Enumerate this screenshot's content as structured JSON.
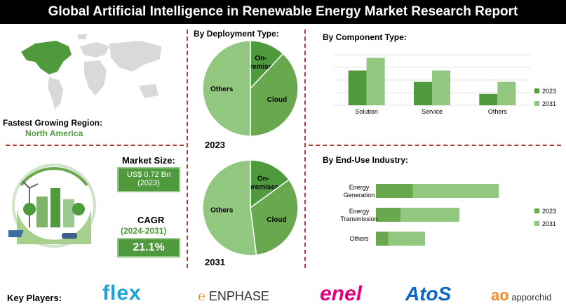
{
  "header": {
    "title": "Global Artificial Intelligence in Renewable Energy Market Research Report"
  },
  "region": {
    "label": "Fastest Growing Region:",
    "value": "North America"
  },
  "market_size": {
    "label": "Market Size:",
    "value_line1": "US$ 0.72 Bn",
    "value_line2": "(2023)"
  },
  "cagr": {
    "label": "CAGR",
    "period": "(2024-2031)",
    "value": "21.1%"
  },
  "deployment": {
    "title": "By Deployment Type:"
  },
  "component": {
    "title": "By Component Type:"
  },
  "enduse": {
    "title": "By End-Use Industry:"
  },
  "key_players": {
    "label": "Key Players:",
    "logos": [
      "flex",
      "ENPHASE",
      "enel",
      "AtoS",
      "apporchid"
    ]
  },
  "colors": {
    "dark_green": "#4e9a3d",
    "light_green": "#92c77f",
    "mid_green": "#6aa84f",
    "divider": "#b23b3b"
  },
  "chart_data": [
    {
      "type": "pie",
      "title": "2023",
      "labels": [
        "On-premises",
        "Cloud",
        "Others"
      ],
      "values": [
        12,
        38,
        50
      ],
      "colors": [
        "#4e9a3d",
        "#6aa84f",
        "#92c77f"
      ]
    },
    {
      "type": "pie",
      "title": "2031",
      "labels": [
        "On-premises",
        "Cloud",
        "Others"
      ],
      "values": [
        15,
        33,
        52
      ],
      "colors": [
        "#4e9a3d",
        "#6aa84f",
        "#92c77f"
      ]
    },
    {
      "type": "bar",
      "categories": [
        "Solution",
        "Service",
        "Others"
      ],
      "series": [
        {
          "name": "2023",
          "values": [
            55,
            37,
            18
          ]
        },
        {
          "name": "2031",
          "values": [
            75,
            55,
            37
          ]
        }
      ],
      "ylim": [
        0,
        80
      ],
      "legend": "right"
    },
    {
      "type": "bar",
      "orientation": "horizontal",
      "categories": [
        "Energy Generation",
        "Energy Transmission",
        "Others"
      ],
      "series": [
        {
          "name": "2023",
          "values": [
            30,
            20,
            10
          ]
        },
        {
          "name": "2031",
          "values": [
            70,
            48,
            30
          ]
        }
      ],
      "legend": "right"
    }
  ]
}
